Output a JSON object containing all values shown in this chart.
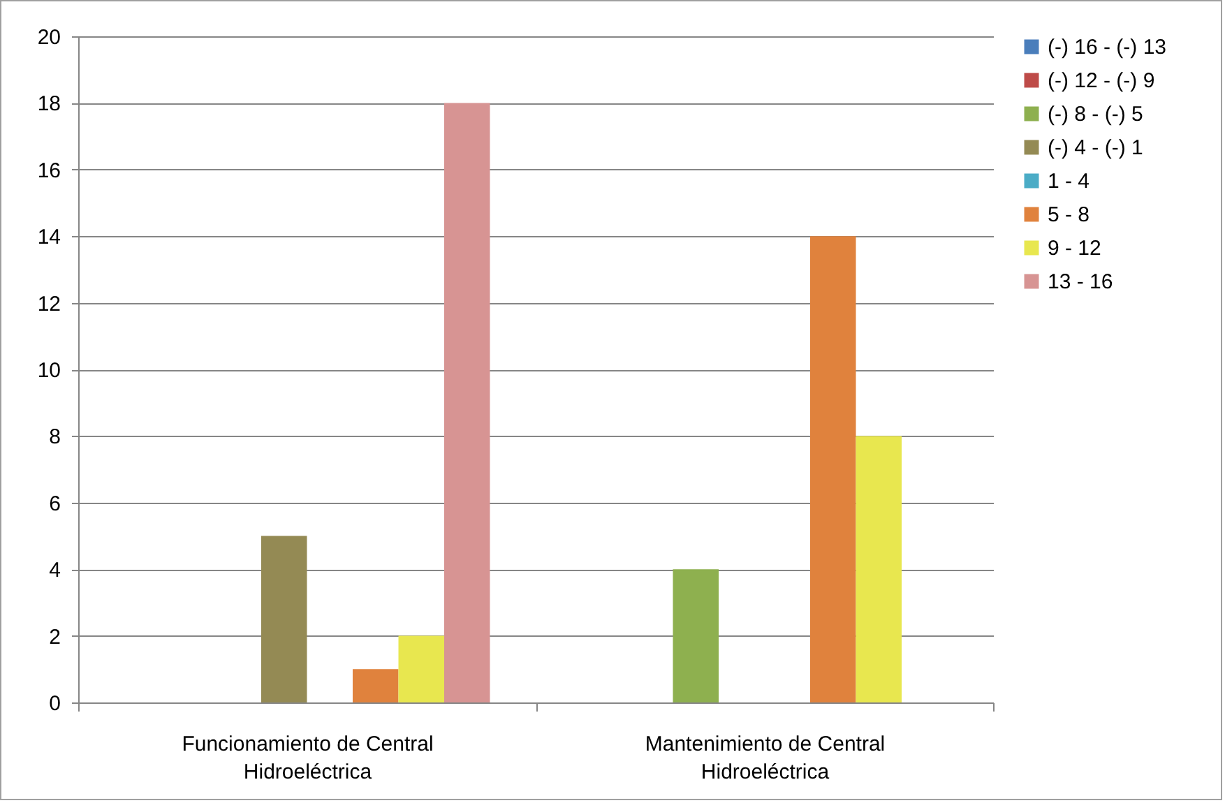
{
  "chart_data": {
    "type": "bar",
    "categories": [
      "Funcionamiento de Central Hidroeléctrica",
      "Mantenimiento de Central Hidroeléctrica"
    ],
    "series": [
      {
        "name": "(-) 16 - (-) 13",
        "color": "#4a7ebb",
        "values": [
          0,
          0
        ]
      },
      {
        "name": "(-) 12 - (-) 9",
        "color": "#be4b48",
        "values": [
          0,
          0
        ]
      },
      {
        "name": "(-) 8 - (-) 5",
        "color": "#8eb04f",
        "values": [
          0,
          4
        ]
      },
      {
        "name": "(-) 4 - (-) 1",
        "color": "#948a54",
        "values": [
          5,
          0
        ]
      },
      {
        "name": "1 - 4",
        "color": "#4bacc6",
        "values": [
          0,
          0
        ]
      },
      {
        "name": "5 - 8",
        "color": "#e0823d",
        "values": [
          1,
          14
        ]
      },
      {
        "name": "9 - 12",
        "color": "#e8e74f",
        "values": [
          2,
          8
        ]
      },
      {
        "name": "13 - 16",
        "color": "#d79493",
        "values": [
          18,
          0
        ]
      }
    ],
    "ylim": [
      0,
      20
    ],
    "yticks": [
      0,
      2,
      4,
      6,
      8,
      10,
      12,
      14,
      16,
      18,
      20
    ],
    "grid": "y",
    "legend": "right"
  }
}
